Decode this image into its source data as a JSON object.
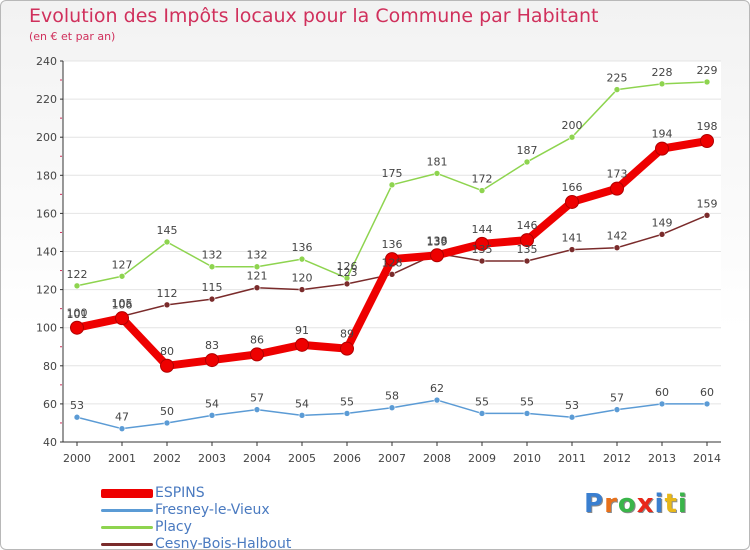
{
  "header": {
    "title": "Evolution des Impôts locaux pour la Commune par Habitant",
    "subtitle": "(en € et par an)"
  },
  "chart_data": {
    "type": "line",
    "title": "Evolution des Impôts locaux pour la Commune par Habitant",
    "subtitle": "(en € et par an)",
    "xlabel": "",
    "ylabel": "",
    "x": [
      "2000",
      "2001",
      "2002",
      "2003",
      "2004",
      "2005",
      "2006",
      "2007",
      "2008",
      "2009",
      "2010",
      "2011",
      "2012",
      "2013",
      "2014"
    ],
    "ylim": [
      40,
      240
    ],
    "yticks": [
      40,
      60,
      80,
      100,
      120,
      140,
      160,
      180,
      200,
      220,
      240
    ],
    "grid": "horizontal",
    "legend_position": "bottom-left",
    "series": [
      {
        "name": "Placy",
        "color": "#8ed44f",
        "values": [
          122,
          127,
          145,
          132,
          132,
          136,
          126,
          175,
          181,
          172,
          187,
          200,
          225,
          228,
          229
        ]
      },
      {
        "name": "Cesny-Bois-Halbout",
        "color": "#7a2b2b",
        "values": [
          101,
          106,
          112,
          115,
          121,
          120,
          123,
          128,
          139,
          135,
          135,
          141,
          142,
          149,
          159
        ]
      },
      {
        "name": "Fresney-le-Vieux",
        "color": "#5b9bd5",
        "values": [
          53,
          47,
          50,
          54,
          57,
          54,
          55,
          58,
          62,
          55,
          55,
          53,
          57,
          60,
          60
        ]
      },
      {
        "name": "ESPINS",
        "color": "#ee0000",
        "values": [
          100,
          105,
          80,
          83,
          86,
          91,
          89,
          136,
          138,
          144,
          146,
          166,
          173,
          194,
          198
        ]
      }
    ],
    "legend": [
      "ESPINS",
      "Fresney-le-Vieux",
      "Placy",
      "Cesny-Bois-Halbout"
    ]
  },
  "legend": {
    "items": [
      {
        "label": "ESPINS",
        "color": "#ee0000"
      },
      {
        "label": "Fresney-le-Vieux",
        "color": "#5b9bd5"
      },
      {
        "label": "Placy",
        "color": "#8ed44f"
      },
      {
        "label": "Cesny-Bois-Halbout",
        "color": "#7a2b2b"
      }
    ]
  },
  "logo": {
    "letters": [
      {
        "char": "P",
        "color": "#3a7fd0"
      },
      {
        "char": "r",
        "color": "#e8701a"
      },
      {
        "char": "o",
        "color": "#3ab54a"
      },
      {
        "char": "x",
        "color": "#e8281a"
      },
      {
        "char": "i",
        "color": "#3a7fd0"
      },
      {
        "char": "t",
        "color": "#e8b81a"
      },
      {
        "char": "i",
        "color": "#3ab54a"
      }
    ]
  }
}
